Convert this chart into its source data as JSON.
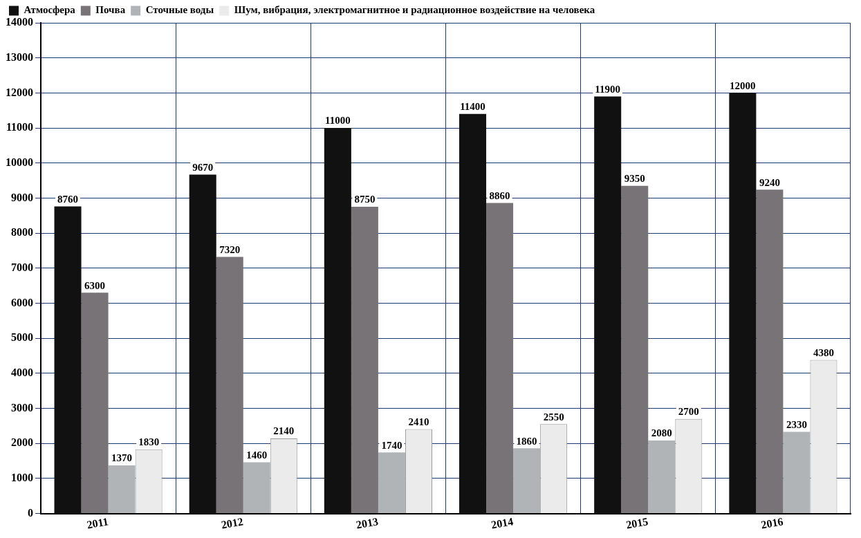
{
  "chart_data": {
    "type": "bar",
    "categories": [
      "2011",
      "2012",
      "2013",
      "2014",
      "2015",
      "2016"
    ],
    "series": [
      {
        "name": "Атмосфера",
        "color": "#111111",
        "values": [
          8760,
          9670,
          11000,
          11400,
          11900,
          12000
        ]
      },
      {
        "name": "Почва",
        "color": "#787376",
        "values": [
          6300,
          7320,
          8750,
          8860,
          9350,
          9240
        ]
      },
      {
        "name": "Сточные воды",
        "color": "#b0b4b6",
        "values": [
          1370,
          1460,
          1740,
          1860,
          2080,
          2330
        ]
      },
      {
        "name": "Шум, вибрация, электромагнитное и радиационное воздействие на человека",
        "color": "#ebebeb",
        "values": [
          1830,
          2140,
          2410,
          2550,
          2700,
          4380
        ]
      }
    ],
    "ylim": [
      0,
      14000
    ],
    "yticks": [
      0,
      1000,
      2000,
      3000,
      4000,
      5000,
      6000,
      7000,
      8000,
      9000,
      10000,
      11000,
      12000,
      13000,
      14000
    ],
    "grid": true,
    "legend": "top left",
    "data_labels": true
  }
}
